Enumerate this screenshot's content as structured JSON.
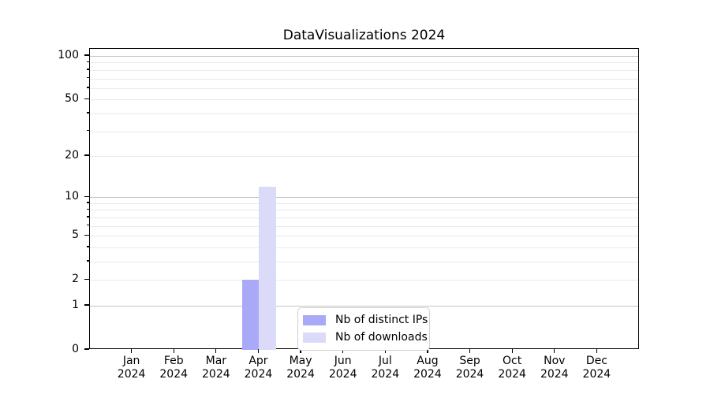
{
  "title": "DataVisualizations 2024",
  "chart_data": {
    "type": "bar",
    "title": "DataVisualizations 2024",
    "x": [
      "Jan 2024",
      "Feb 2024",
      "Mar 2024",
      "Apr 2024",
      "May 2024",
      "Jun 2024",
      "Jul 2024",
      "Aug 2024",
      "Sep 2024",
      "Oct 2024",
      "Nov 2024",
      "Dec 2024"
    ],
    "months": [
      "Jan",
      "Feb",
      "Mar",
      "Apr",
      "May",
      "Jun",
      "Jul",
      "Aug",
      "Sep",
      "Oct",
      "Nov",
      "Dec"
    ],
    "year": "2024",
    "series": [
      {
        "name": "Nb of distinct IPs",
        "color": "#a9a9f7",
        "values": [
          0,
          0,
          0,
          2,
          0,
          0,
          0,
          0,
          0,
          0,
          0,
          0
        ]
      },
      {
        "name": "Nb of downloads",
        "color": "#dbdbf9",
        "values": [
          0,
          0,
          0,
          12,
          0,
          0,
          0,
          0,
          0,
          0,
          0,
          0
        ]
      }
    ],
    "y_scale": "log1p",
    "ylim": [
      0,
      112
    ],
    "y_ticks": [
      100,
      50,
      20,
      10,
      5,
      2,
      1,
      0
    ],
    "grid_major": [
      1,
      10,
      100
    ],
    "grid_minor": [
      2,
      3,
      4,
      5,
      6,
      7,
      8,
      9,
      20,
      30,
      40,
      50,
      60,
      70,
      80,
      90
    ],
    "grid": true,
    "legend_position": "lower center"
  },
  "colors": {
    "bar_distinct_ips": "#a9a9f7",
    "bar_downloads": "#dbdbf9",
    "grid_major": "#c3c3c3",
    "grid_minor": "#eaeaea",
    "spine": "#000000",
    "background": "#ffffff"
  }
}
